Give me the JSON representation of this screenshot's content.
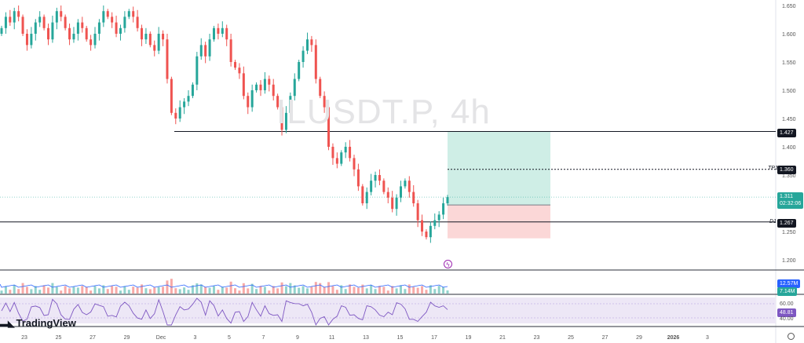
{
  "watermark": "ILUSDT.P, 4h",
  "brand": "TradingView",
  "price_axis": {
    "ticks": [
      {
        "value": 1.65,
        "label": "1.650"
      },
      {
        "value": 1.6,
        "label": "1.600"
      },
      {
        "value": 1.55,
        "label": "1.550"
      },
      {
        "value": 1.5,
        "label": "1.500"
      },
      {
        "value": 1.45,
        "label": "1.450"
      },
      {
        "value": 1.4,
        "label": "1.400"
      },
      {
        "value": 1.35,
        "label": "1.350"
      },
      {
        "value": 1.25,
        "label": "1.250"
      },
      {
        "value": 1.2,
        "label": "1.200"
      }
    ]
  },
  "time_axis": {
    "ticks": [
      "23",
      "25",
      "27",
      "29",
      "Dec",
      "3",
      "5",
      "7",
      "9",
      "11",
      "13",
      "15",
      "17",
      "19",
      "21",
      "23",
      "25",
      "27",
      "29",
      "2026",
      "3"
    ]
  },
  "levels": {
    "resistance": {
      "value": 1.427,
      "label": "1.427"
    },
    "tp": {
      "value": 1.36,
      "label": "1.360",
      "tag": "TP1"
    },
    "entry": {
      "value": 1.267,
      "label": "1.267",
      "tag": "D1"
    },
    "current": {
      "value": 1.311,
      "label": "1.311",
      "countdown": "02:32:06"
    }
  },
  "position": {
    "entry": 1.297,
    "target": 1.427,
    "stop": 1.238
  },
  "volume": {
    "ma_label": "12.57M",
    "last_label": "7.14M"
  },
  "rsi": {
    "upper_label": "60.00",
    "value_label": "48.81",
    "lower_label": "40.00"
  },
  "colors": {
    "up": "#26a69a",
    "down": "#ef5350",
    "volume_ma": "#2962ff",
    "rsi_line": "#7e57c2",
    "rsi_band": "#ede7f6",
    "tp_zone": "#cfeee6",
    "sl_zone": "#fbd7d7"
  },
  "chart_data": {
    "type": "candlestick",
    "symbol": "ILUSDT.P",
    "timeframe": "4h",
    "ylim": [
      1.185,
      1.665
    ],
    "closes": [
      1.61,
      1.63,
      1.62,
      1.64,
      1.63,
      1.6,
      1.58,
      1.6,
      1.62,
      1.63,
      1.61,
      1.59,
      1.62,
      1.64,
      1.63,
      1.61,
      1.59,
      1.6,
      1.62,
      1.61,
      1.59,
      1.58,
      1.6,
      1.62,
      1.64,
      1.63,
      1.62,
      1.6,
      1.61,
      1.63,
      1.64,
      1.63,
      1.61,
      1.59,
      1.6,
      1.58,
      1.57,
      1.6,
      1.59,
      1.52,
      1.46,
      1.45,
      1.47,
      1.48,
      1.49,
      1.51,
      1.56,
      1.58,
      1.56,
      1.59,
      1.61,
      1.6,
      1.61,
      1.59,
      1.55,
      1.54,
      1.53,
      1.49,
      1.47,
      1.5,
      1.51,
      1.5,
      1.52,
      1.51,
      1.49,
      1.47,
      1.43,
      1.46,
      1.49,
      1.52,
      1.55,
      1.57,
      1.59,
      1.58,
      1.52,
      1.49,
      1.47,
      1.4,
      1.38,
      1.37,
      1.39,
      1.4,
      1.38,
      1.36,
      1.33,
      1.3,
      1.32,
      1.34,
      1.35,
      1.34,
      1.32,
      1.31,
      1.29,
      1.31,
      1.33,
      1.34,
      1.32,
      1.3,
      1.27,
      1.25,
      1.24,
      1.26,
      1.27,
      1.28,
      1.3,
      1.311
    ]
  }
}
